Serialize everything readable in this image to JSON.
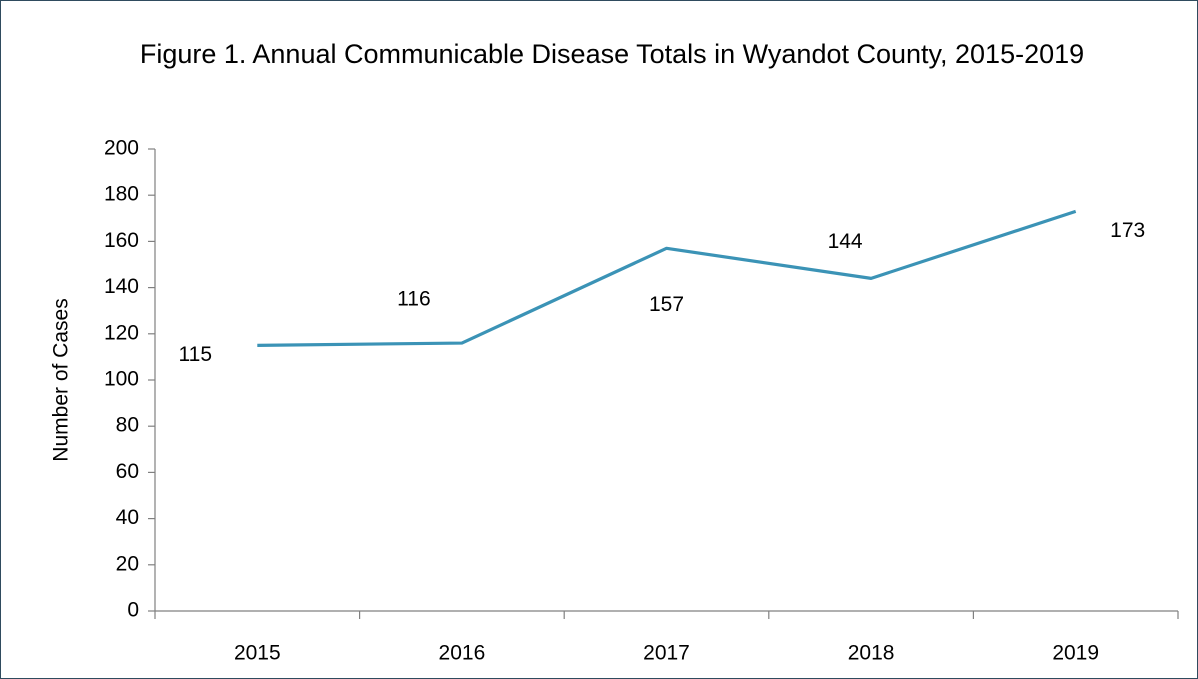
{
  "chart_data": {
    "type": "line",
    "title": "Figure 1. Annual Communicable Disease Totals in Wyandot County, 2015-2019",
    "y_label": "Number of Cases",
    "categories": [
      "2015",
      "2016",
      "2017",
      "2018",
      "2019"
    ],
    "series": [
      {
        "name": "Cases",
        "color": "#3b93b6",
        "values": [
          115,
          116,
          157,
          144,
          173
        ]
      }
    ],
    "ylim": [
      0,
      200
    ],
    "yticks": [
      0,
      20,
      40,
      60,
      80,
      100,
      120,
      140,
      160,
      180,
      200
    ],
    "grid": false,
    "data_labels": true
  }
}
